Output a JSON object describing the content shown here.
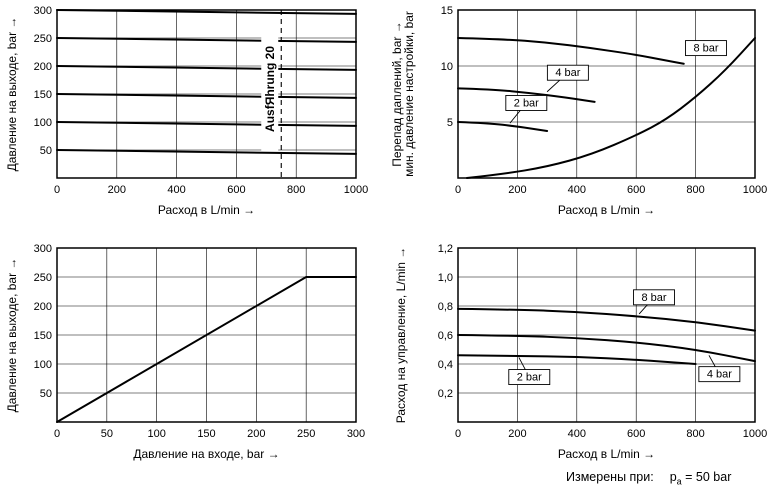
{
  "page": {
    "background": "#ffffff",
    "line_color": "#000000"
  },
  "footer": {
    "label": "Измерены при:",
    "symbol": "p",
    "symbol_sub": "a",
    "value": "= 50 bar"
  },
  "chart_data": [
    {
      "id": "outlet-pressure-vs-flow",
      "type": "line",
      "title": "",
      "xlabel": "Расход в L/min →",
      "ylabel": [
        "Давление на выходе, bar →"
      ],
      "xlim": [
        0,
        1000
      ],
      "ylim": [
        0,
        300
      ],
      "xticks": [
        0,
        200,
        400,
        600,
        800,
        1000
      ],
      "yticks": [
        0,
        50,
        100,
        150,
        200,
        250,
        300
      ],
      "grid": true,
      "annotation": {
        "x": 750,
        "label": "AusfЯhrung 20"
      },
      "series": [
        {
          "name": "300 bar setting",
          "x": [
            0,
            1000
          ],
          "y": [
            300,
            293
          ]
        },
        {
          "name": "250 bar setting",
          "x": [
            0,
            1000
          ],
          "y": [
            250,
            243
          ]
        },
        {
          "name": "200 bar setting",
          "x": [
            0,
            1000
          ],
          "y": [
            200,
            193
          ]
        },
        {
          "name": "150 bar setting",
          "x": [
            0,
            1000
          ],
          "y": [
            150,
            143
          ]
        },
        {
          "name": "100 bar setting",
          "x": [
            0,
            1000
          ],
          "y": [
            100,
            93
          ]
        },
        {
          "name": "50 bar setting",
          "x": [
            0,
            1000
          ],
          "y": [
            50,
            43
          ]
        }
      ],
      "labels": []
    },
    {
      "id": "pressure-differential-vs-flow",
      "type": "line",
      "title": "",
      "xlabel": "Расход в L/min →",
      "ylabel": [
        "Перепад даплений, bar →",
        "мин. давление настройки, bar"
      ],
      "xlim": [
        0,
        1000
      ],
      "ylim": [
        0,
        15
      ],
      "xticks": [
        0,
        200,
        400,
        600,
        800,
        1000
      ],
      "yticks": [
        0,
        5,
        10,
        15
      ],
      "grid": true,
      "series": [
        {
          "name": "8 bar",
          "x": [
            0,
            150,
            300,
            450,
            600,
            700,
            760
          ],
          "y": [
            12.5,
            12.4,
            12.1,
            11.6,
            11.0,
            10.5,
            10.2
          ]
        },
        {
          "name": "4 bar",
          "x": [
            0,
            120,
            240,
            360,
            460
          ],
          "y": [
            8.0,
            7.9,
            7.6,
            7.2,
            6.8
          ]
        },
        {
          "name": "2 bar",
          "x": [
            0,
            100,
            200,
            300
          ],
          "y": [
            5.0,
            4.9,
            4.6,
            4.2
          ]
        },
        {
          "name": "min-setting-pressure",
          "x": [
            30,
            150,
            300,
            450,
            600,
            700,
            800,
            900,
            1000
          ],
          "y": [
            0,
            0.35,
            1.0,
            2.1,
            3.8,
            5.2,
            7.2,
            9.6,
            12.5
          ]
        }
      ],
      "labels": [
        {
          "text": "8 bar",
          "x": 835,
          "y": 11.6
        },
        {
          "text": "4 bar",
          "x": 370,
          "y": 9.4,
          "leader_x": 300,
          "leader_y": 7.7
        },
        {
          "text": "2 bar",
          "x": 230,
          "y": 6.7,
          "leader_x": 175,
          "leader_y": 4.9
        }
      ]
    },
    {
      "id": "outlet-vs-inlet-pressure",
      "type": "line",
      "title": "",
      "xlabel": "Давление на входе, bar →",
      "ylabel": [
        "Давление на выходе, bar →"
      ],
      "xlim": [
        0,
        300
      ],
      "ylim": [
        0,
        300
      ],
      "xticks": [
        0,
        50,
        100,
        150,
        200,
        250,
        300
      ],
      "yticks": [
        0,
        50,
        100,
        150,
        200,
        250,
        300
      ],
      "grid": true,
      "series": [
        {
          "name": "characteristic",
          "x": [
            0,
            250,
            300
          ],
          "y": [
            0,
            250,
            250
          ]
        }
      ],
      "labels": []
    },
    {
      "id": "pilot-flow-vs-flow",
      "type": "line",
      "title": "",
      "xlabel": "Расход в L/min →",
      "ylabel": [
        "Расход на управление, L/min →"
      ],
      "xlim": [
        0,
        1000
      ],
      "ylim": [
        0,
        1.2
      ],
      "xticks": [
        0,
        200,
        400,
        600,
        800,
        1000
      ],
      "yticks": [
        0,
        0.2,
        0.4,
        0.6,
        0.8,
        1.0,
        1.2
      ],
      "ytick_labels": [
        "0",
        "0,2",
        "0,4",
        "0,6",
        "0,8",
        "1,0",
        "1,2"
      ],
      "grid": true,
      "series": [
        {
          "name": "8 bar",
          "x": [
            0,
            200,
            400,
            600,
            800,
            1000
          ],
          "y": [
            0.78,
            0.775,
            0.76,
            0.73,
            0.69,
            0.63
          ]
        },
        {
          "name": "4 bar",
          "x": [
            0,
            200,
            400,
            600,
            800,
            1000
          ],
          "y": [
            0.6,
            0.595,
            0.58,
            0.55,
            0.5,
            0.42
          ]
        },
        {
          "name": "2 bar",
          "x": [
            0,
            200,
            400,
            600,
            800
          ],
          "y": [
            0.46,
            0.455,
            0.45,
            0.43,
            0.4
          ]
        }
      ],
      "labels": [
        {
          "text": "8 bar",
          "x": 660,
          "y": 0.86,
          "leader_x": 610,
          "leader_y": 0.745
        },
        {
          "text": "2 bar",
          "x": 240,
          "y": 0.31,
          "leader_x": 205,
          "leader_y": 0.445
        },
        {
          "text": "4 bar",
          "x": 880,
          "y": 0.33,
          "leader_x": 845,
          "leader_y": 0.46
        }
      ]
    }
  ]
}
